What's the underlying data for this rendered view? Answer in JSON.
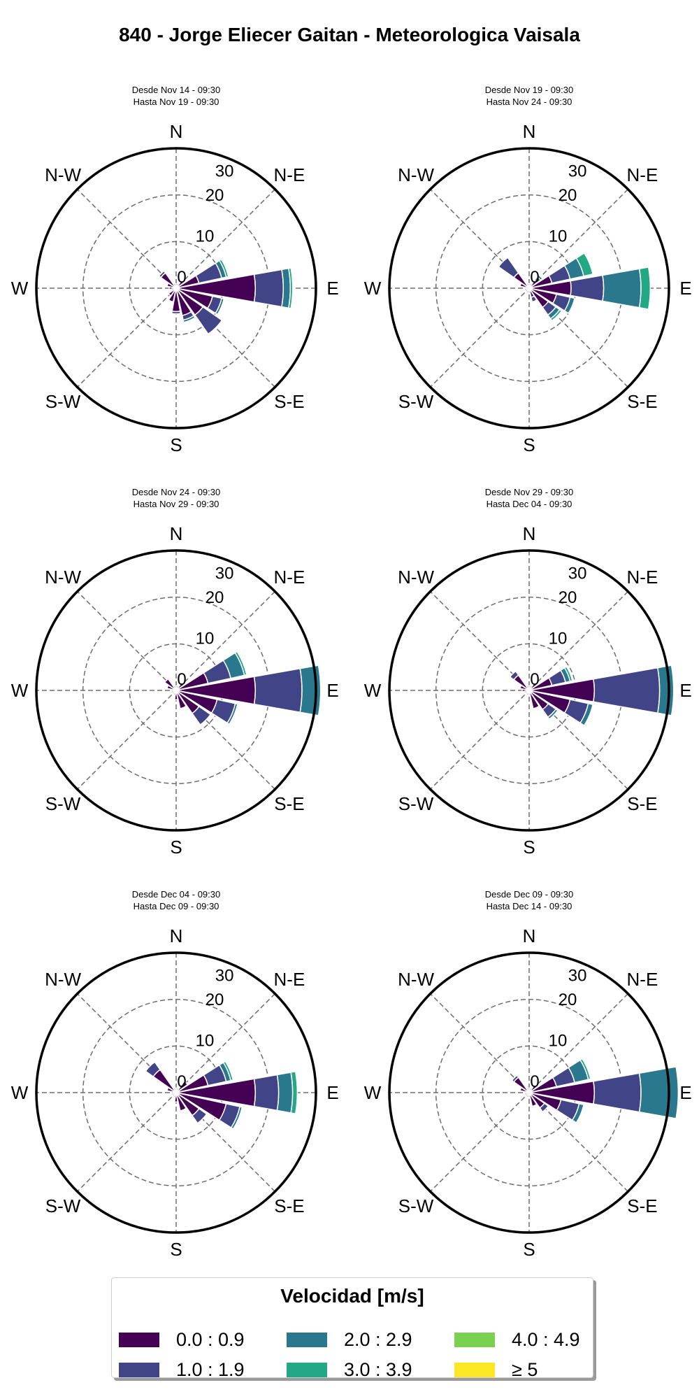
{
  "title": "840 - Jorge Eliecer Gaitan - Meteorologica Vaisala",
  "chart_data": {
    "type": "windrose",
    "radial_ticks": [
      0,
      10,
      20,
      30
    ],
    "r_max": 30,
    "directions": [
      "N",
      "N-E",
      "E",
      "S-E",
      "S",
      "S-W",
      "W",
      "N-W"
    ],
    "sector_angles_deg": [
      0,
      22.5,
      45,
      67.5,
      90,
      112.5,
      135,
      157.5,
      180,
      202.5,
      225,
      247.5,
      270,
      292.5,
      315,
      337.5
    ],
    "legend": {
      "title": "Velocidad [m/s]",
      "bins": [
        {
          "label": "0.0 : 0.9",
          "color": "#440154"
        },
        {
          "label": "1.0 : 1.9",
          "color": "#414487"
        },
        {
          "label": "2.0 : 2.9",
          "color": "#2a788e"
        },
        {
          "label": "3.0 : 3.9",
          "color": "#22a884"
        },
        {
          "label": "4.0 : 4.9",
          "color": "#7ad151"
        },
        {
          "label": "≥  5",
          "color": "#fde725"
        }
      ]
    },
    "panels": [
      {
        "subtitle": [
          "Desde Nov 14 - 09:30",
          "Hasta Nov 19 - 09:30"
        ],
        "sectors": [
          [
            1,
            0,
            0,
            0,
            0,
            0
          ],
          [
            1,
            0,
            0,
            0,
            0,
            0
          ],
          [
            2,
            0,
            0,
            0,
            0,
            0
          ],
          [
            5,
            5,
            1,
            0.5,
            0,
            0
          ],
          [
            17,
            6,
            1.5,
            0.5,
            0,
            0
          ],
          [
            8,
            2,
            0.5,
            0,
            0,
            0
          ],
          [
            7,
            5,
            0,
            0,
            0,
            0
          ],
          [
            6,
            1,
            0.5,
            0,
            0,
            0
          ],
          [
            5,
            0.5,
            0,
            0,
            0,
            0
          ],
          [
            3,
            0,
            0,
            0,
            0,
            0
          ],
          [
            2,
            0,
            0,
            0,
            0,
            0
          ],
          [
            1,
            0,
            0,
            0,
            0,
            0
          ],
          [
            1.5,
            0,
            0,
            0,
            0,
            0
          ],
          [
            2,
            0,
            0,
            0,
            0,
            0
          ],
          [
            4,
            0.5,
            0,
            0,
            0,
            0
          ],
          [
            1,
            0,
            0,
            0,
            0,
            0
          ]
        ]
      },
      {
        "subtitle": [
          "Desde Nov 19 - 09:30",
          "Hasta Nov 24 - 09:30"
        ],
        "sectors": [
          [
            1,
            0,
            0,
            0,
            0,
            0
          ],
          [
            1,
            0,
            0,
            0,
            0,
            0
          ],
          [
            2,
            1,
            0.5,
            0,
            0,
            0
          ],
          [
            5,
            4,
            3,
            2,
            0,
            0
          ],
          [
            9,
            7,
            8,
            2,
            0,
            0
          ],
          [
            6,
            3,
            1,
            0,
            0,
            0
          ],
          [
            5,
            2,
            1,
            0.5,
            0,
            0
          ],
          [
            2,
            1,
            0,
            0,
            0,
            0
          ],
          [
            1,
            0,
            0,
            0,
            0,
            0
          ],
          [
            1,
            0,
            0,
            0,
            0,
            0
          ],
          [
            1,
            0,
            0,
            0,
            0,
            0
          ],
          [
            1,
            0,
            0,
            0,
            0,
            0
          ],
          [
            1,
            0,
            0,
            0,
            0,
            0
          ],
          [
            2,
            0,
            0,
            0,
            0,
            0
          ],
          [
            4,
            4,
            0,
            0,
            0,
            0
          ],
          [
            1,
            0,
            0,
            0,
            0,
            0
          ]
        ]
      },
      {
        "subtitle": [
          "Desde Nov 24 - 09:30",
          "Hasta Nov 29 - 09:30"
        ],
        "sectors": [
          [
            1,
            0,
            0,
            0,
            0,
            0
          ],
          [
            1,
            0,
            0,
            0,
            0,
            0
          ],
          [
            2,
            0,
            0,
            0,
            0,
            0
          ],
          [
            7,
            5,
            3,
            0.5,
            0,
            0
          ],
          [
            17,
            10,
            4,
            0,
            0,
            0
          ],
          [
            9,
            4,
            0.5,
            0,
            0,
            0
          ],
          [
            6,
            3,
            0,
            0,
            0,
            0
          ],
          [
            4,
            0,
            0,
            0,
            0,
            0
          ],
          [
            2,
            0,
            0,
            0,
            0,
            0
          ],
          [
            1,
            0,
            0,
            0,
            0,
            0
          ],
          [
            1,
            0,
            0,
            0,
            0,
            0
          ],
          [
            1,
            0,
            0,
            0,
            0,
            0
          ],
          [
            1,
            0,
            0,
            0,
            0,
            0
          ],
          [
            2,
            0,
            0,
            0,
            0,
            0
          ],
          [
            3,
            0,
            0,
            0,
            0,
            0
          ],
          [
            1,
            0,
            0,
            0,
            0,
            0
          ]
        ]
      },
      {
        "subtitle": [
          "Desde Nov 29 - 09:30",
          "Hasta Dec 04 - 09:30"
        ],
        "sectors": [
          [
            1,
            0,
            0,
            0,
            0,
            0
          ],
          [
            1,
            0,
            0,
            0,
            0,
            0
          ],
          [
            2,
            0,
            0,
            0,
            0,
            0
          ],
          [
            5,
            3,
            1,
            0.5,
            0,
            0
          ],
          [
            14,
            14,
            3,
            0,
            0,
            0
          ],
          [
            9,
            4,
            1,
            0,
            0,
            0
          ],
          [
            5,
            2,
            0.5,
            0,
            0,
            0
          ],
          [
            4,
            0,
            0,
            0,
            0,
            0
          ],
          [
            1,
            0,
            0,
            0,
            0,
            0
          ],
          [
            1,
            0,
            0,
            0,
            0,
            0
          ],
          [
            1,
            0,
            0,
            0,
            0,
            0
          ],
          [
            1,
            0,
            0,
            0,
            0,
            0
          ],
          [
            1.5,
            0,
            0,
            0,
            0,
            0
          ],
          [
            2,
            0,
            0,
            0,
            0,
            0
          ],
          [
            4,
            1,
            0,
            0,
            0,
            0
          ],
          [
            1,
            0,
            0,
            0,
            0,
            0
          ]
        ]
      },
      {
        "subtitle": [
          "Desde Dec 04 - 09:30",
          "Hasta Dec 09 - 09:30"
        ],
        "sectors": [
          [
            1,
            0,
            0,
            0,
            0,
            0
          ],
          [
            1,
            0,
            0,
            0,
            0,
            0
          ],
          [
            3,
            0,
            0,
            0,
            0,
            0
          ],
          [
            7,
            4,
            1,
            0.5,
            0,
            0
          ],
          [
            17,
            5,
            3,
            1,
            0,
            0
          ],
          [
            11,
            3,
            0.5,
            0,
            0,
            0
          ],
          [
            6,
            2,
            0,
            0,
            0,
            0
          ],
          [
            4,
            0,
            0,
            0,
            0,
            0
          ],
          [
            2,
            0,
            0,
            0,
            0,
            0
          ],
          [
            1,
            0,
            0,
            0,
            0,
            0
          ],
          [
            1,
            0,
            0,
            0,
            0,
            0
          ],
          [
            1,
            0,
            0,
            0,
            0,
            0
          ],
          [
            1,
            0,
            0,
            0,
            0,
            0
          ],
          [
            2,
            0,
            0,
            0,
            0,
            0
          ],
          [
            6,
            2,
            0,
            0,
            0,
            0
          ],
          [
            1,
            0,
            0,
            0,
            0,
            0
          ]
        ]
      },
      {
        "subtitle": [
          "Desde Dec 09 - 09:30",
          "Hasta Dec 14 - 09:30"
        ],
        "sectors": [
          [
            1,
            0,
            0,
            0,
            0,
            0
          ],
          [
            1,
            0,
            0,
            0,
            0,
            0
          ],
          [
            2,
            0,
            0,
            0,
            0,
            0
          ],
          [
            6,
            4,
            3,
            0.5,
            0,
            0
          ],
          [
            14,
            10,
            8,
            0,
            0,
            0
          ],
          [
            7,
            4,
            1,
            0,
            0,
            0
          ],
          [
            4,
            1,
            0,
            0,
            0,
            0
          ],
          [
            3,
            0,
            0,
            0,
            0,
            0
          ],
          [
            1,
            0,
            0,
            0,
            0,
            0
          ],
          [
            1,
            0,
            0,
            0,
            0,
            0
          ],
          [
            1,
            0,
            0,
            0,
            0,
            0
          ],
          [
            1,
            0,
            0,
            0,
            0,
            0
          ],
          [
            1,
            0,
            0,
            0,
            0,
            0
          ],
          [
            2,
            0,
            0,
            0,
            0,
            0
          ],
          [
            4,
            0.5,
            0,
            0,
            0,
            0
          ],
          [
            1,
            0,
            0,
            0,
            0,
            0
          ]
        ]
      }
    ]
  }
}
